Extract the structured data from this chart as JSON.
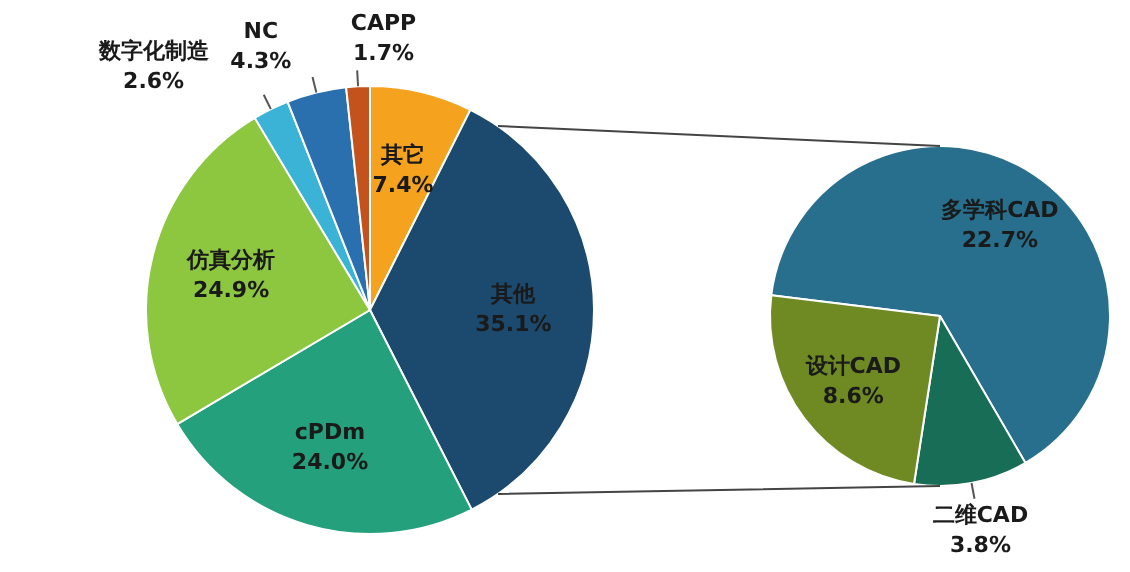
{
  "chart_data": [
    {
      "type": "pie",
      "categories": [
        "其它",
        "其他",
        "cPDm",
        "仿真分析",
        "数字化制造",
        "NC",
        "CAPP"
      ],
      "values": [
        7.4,
        35.1,
        24.0,
        24.9,
        2.6,
        4.3,
        1.7
      ],
      "value_labels": [
        "7.4%",
        "35.1%",
        "24.0%",
        "24.9%",
        "2.6%",
        "4.3%",
        "1.7%"
      ],
      "colors": [
        "#f5a21e",
        "#1c4a6e",
        "#25a07c",
        "#8dc63f",
        "#3bb3d6",
        "#2a6fae",
        "#c4521c"
      ],
      "legend": false
    },
    {
      "type": "pie",
      "categories": [
        "多学科CAD",
        "二维CAD",
        "设计CAD"
      ],
      "values": [
        22.7,
        3.8,
        8.6
      ],
      "value_labels": [
        "22.7%",
        "3.8%",
        "8.6%"
      ],
      "colors": [
        "#276f8c",
        "#176d55",
        "#6f8a22"
      ],
      "legend": false
    }
  ]
}
